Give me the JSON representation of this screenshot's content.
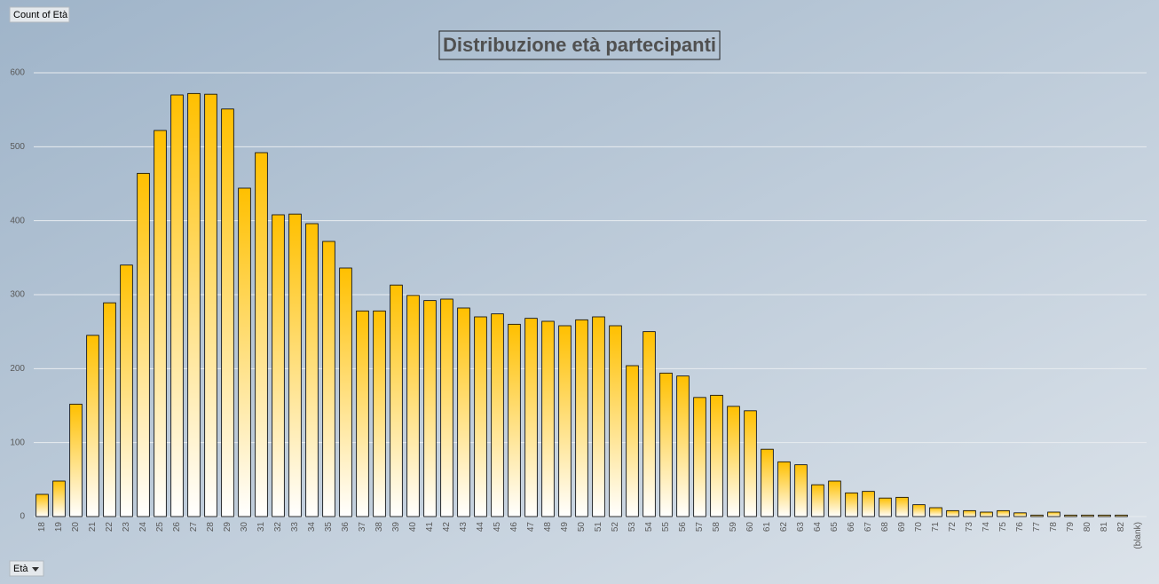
{
  "chart_data": {
    "type": "bar",
    "title": "Distribuzione età partecipanti",
    "value_field_button": "Count of Età",
    "axis_field_button": "Età",
    "categories": [
      "18",
      "19",
      "20",
      "21",
      "22",
      "23",
      "24",
      "25",
      "26",
      "27",
      "28",
      "29",
      "30",
      "31",
      "32",
      "33",
      "34",
      "35",
      "36",
      "37",
      "38",
      "39",
      "40",
      "41",
      "42",
      "43",
      "44",
      "45",
      "46",
      "47",
      "48",
      "49",
      "50",
      "51",
      "52",
      "53",
      "54",
      "55",
      "56",
      "57",
      "58",
      "59",
      "60",
      "61",
      "62",
      "63",
      "64",
      "65",
      "66",
      "67",
      "68",
      "69",
      "70",
      "71",
      "72",
      "73",
      "74",
      "75",
      "76",
      "77",
      "78",
      "79",
      "80",
      "81",
      "82",
      "(blank)"
    ],
    "values": [
      30,
      48,
      152,
      245,
      289,
      340,
      464,
      522,
      570,
      572,
      571,
      551,
      444,
      492,
      408,
      409,
      396,
      372,
      336,
      278,
      278,
      313,
      299,
      292,
      294,
      282,
      270,
      274,
      260,
      268,
      264,
      258,
      266,
      270,
      258,
      204,
      250,
      194,
      190,
      161,
      164,
      149,
      143,
      91,
      74,
      70,
      43,
      48,
      32,
      34,
      25,
      26,
      16,
      12,
      8,
      8,
      6,
      8,
      5,
      2,
      6,
      2,
      2,
      2,
      2,
      null
    ],
    "color": "#ffc000",
    "ylim": [
      0,
      600
    ],
    "yticks": [
      0,
      100,
      200,
      300,
      400,
      500,
      600
    ],
    "grid": true
  }
}
